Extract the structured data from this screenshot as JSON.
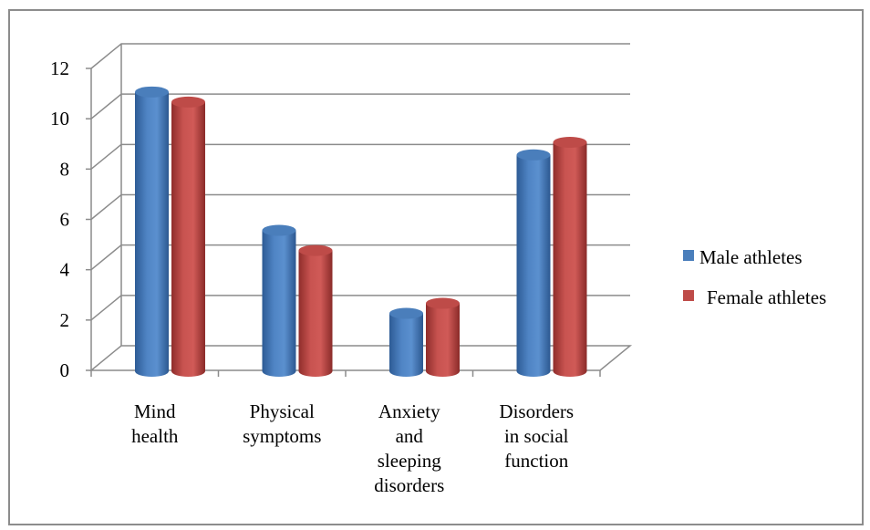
{
  "chart_data": {
    "type": "bar",
    "categories": [
      [
        "Mind",
        "health"
      ],
      [
        "Physical",
        "symptoms"
      ],
      [
        "Anxiety",
        "and",
        "sleeping",
        "disorders"
      ],
      [
        "Disorders",
        "in social",
        "function"
      ]
    ],
    "series": [
      {
        "name": "Male athletes",
        "values": [
          11.1,
          5.6,
          2.3,
          8.6
        ],
        "color": "#4a7ebb"
      },
      {
        "name": "Female athletes",
        "values": [
          10.7,
          4.8,
          2.7,
          9.1
        ],
        "color": "#be4b48"
      }
    ],
    "yticks": [
      0,
      2,
      4,
      6,
      8,
      10,
      12
    ],
    "ylim": [
      0,
      12
    ],
    "grid": true,
    "style": "3d-cylinder",
    "legend_position": "right"
  }
}
